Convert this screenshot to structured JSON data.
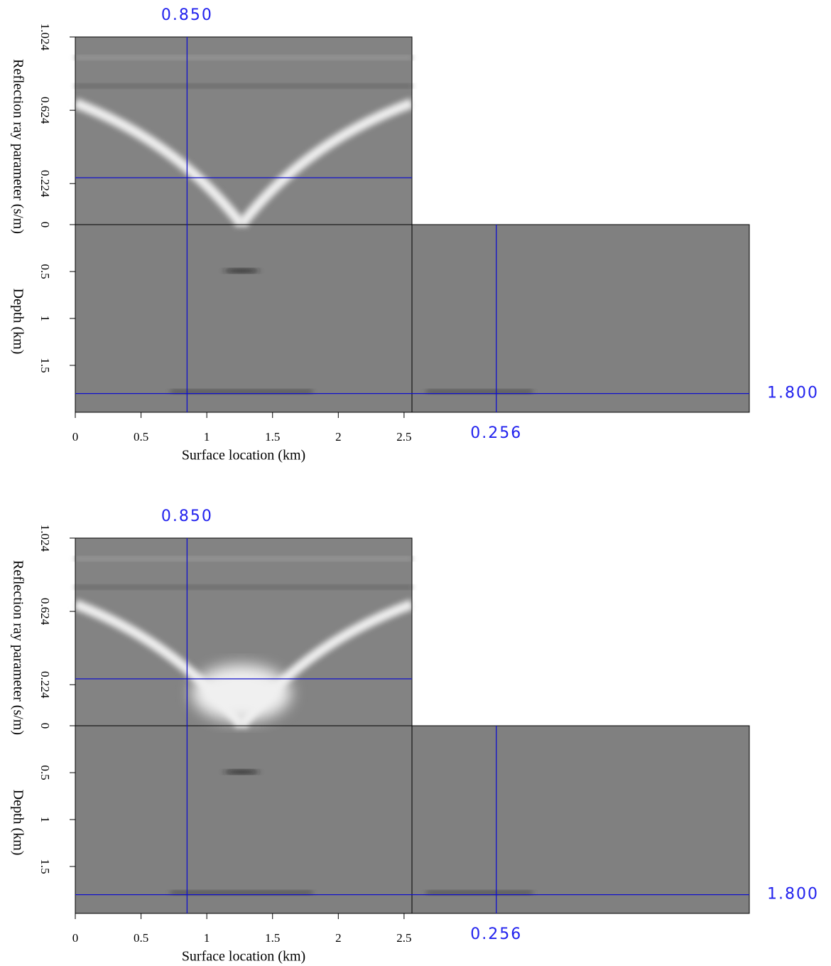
{
  "chart_data": [
    {
      "type": "seismic-cube",
      "xlabel": "Surface location (km)",
      "y2label": "Reflection ray parameter (s/m)",
      "ylabel": "Depth (km)",
      "xlim": [
        0,
        2.56
      ],
      "xticks": [
        0,
        0.5,
        1,
        1.5,
        2,
        2.5
      ],
      "ylim": [
        0,
        2
      ],
      "yticks": [
        0.5,
        1,
        1.5
      ],
      "y2lim": [
        0,
        1.024
      ],
      "y2ticks": [
        0,
        0.224,
        0.624,
        1.024
      ],
      "cursor_x": {
        "value": 0.85,
        "label": "0.850"
      },
      "cursor_p": {
        "value": 0.256,
        "label": "0.256"
      },
      "cursor_depth": {
        "value": 1.8,
        "label": "1.800"
      }
    },
    {
      "type": "seismic-cube",
      "xlabel": "Surface location (km)",
      "y2label": "Reflection ray parameter (s/m)",
      "ylabel": "Depth (km)",
      "xlim": [
        0,
        2.56
      ],
      "xticks": [
        0,
        0.5,
        1,
        1.5,
        2,
        2.5
      ],
      "ylim": [
        0,
        2
      ],
      "yticks": [
        0.5,
        1,
        1.5
      ],
      "y2lim": [
        0,
        1.024
      ],
      "y2ticks": [
        0,
        0.224,
        0.624,
        1.024
      ],
      "cursor_x": {
        "value": 0.85,
        "label": "0.850"
      },
      "cursor_p": {
        "value": 0.256,
        "label": "0.256"
      },
      "cursor_depth": {
        "value": 1.8,
        "label": "1.800"
      }
    }
  ]
}
